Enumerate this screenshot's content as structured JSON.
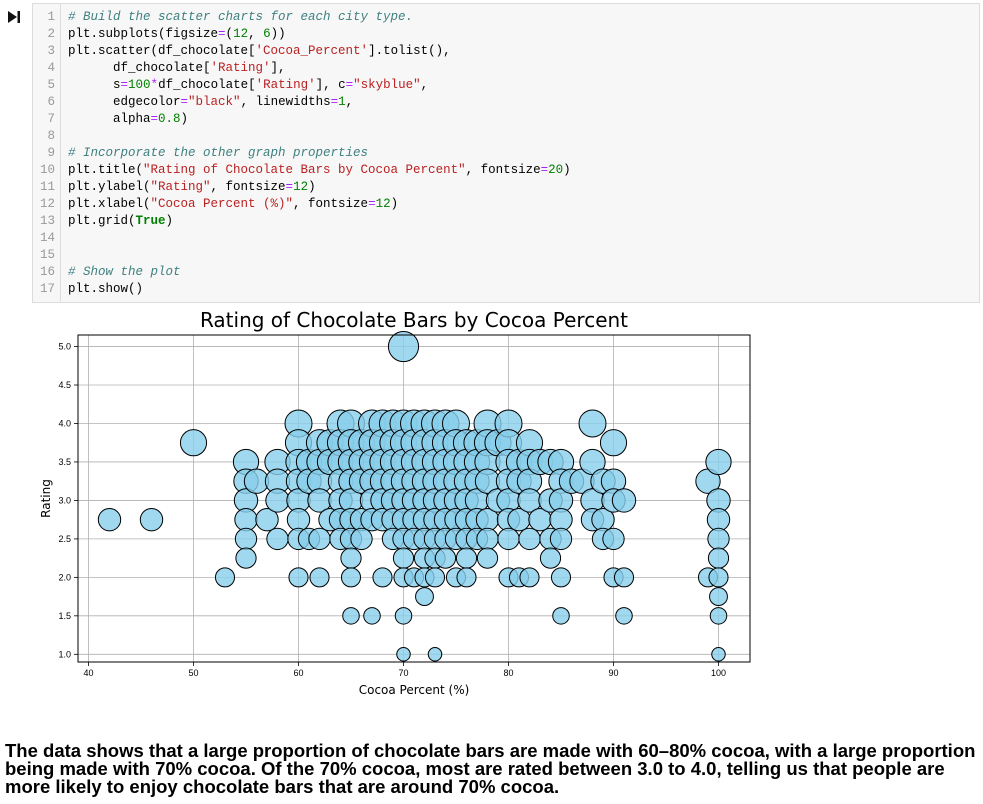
{
  "notebook": {
    "code_lines": [
      "# Build the scatter charts for each city type.",
      "plt.subplots(figsize=(12, 6))",
      "plt.scatter(df_chocolate['Cocoa_Percent'].tolist(),",
      "      df_chocolate['Rating'],",
      "      s=100*df_chocolate['Rating'], c=\"skyblue\",",
      "      edgecolor=\"black\", linewidths=1,",
      "      alpha=0.8)",
      "",
      "# Incorporate the other graph properties",
      "plt.title(\"Rating of Chocolate Bars by Cocoa Percent\", fontsize=20)",
      "plt.ylabel(\"Rating\", fontsize=12)",
      "plt.xlabel(\"Cocoa Percent (%)\", fontsize=12)",
      "plt.grid(True)",
      "",
      "",
      "# Show the plot",
      "plt.show()"
    ]
  },
  "chart_data": {
    "type": "scatter",
    "title": "Rating of Chocolate Bars by Cocoa Percent",
    "xlabel": "Cocoa Percent (%)",
    "ylabel": "Rating",
    "xlim": [
      39,
      103
    ],
    "ylim": [
      0.9,
      5.15
    ],
    "xticks": [
      40,
      50,
      60,
      70,
      80,
      90,
      100
    ],
    "yticks": [
      1.0,
      1.5,
      2.0,
      2.5,
      3.0,
      3.5,
      4.0,
      4.5,
      5.0
    ],
    "grid": true,
    "marker_color": "#87ceeb",
    "edge_color": "#000000",
    "size_rule": "marker area proportional to 100 x rating",
    "points": [
      [
        42,
        2.75
      ],
      [
        46,
        2.75
      ],
      [
        50,
        3.75
      ],
      [
        53,
        2.0
      ],
      [
        55,
        3.5
      ],
      [
        55,
        3.25
      ],
      [
        55,
        3.0
      ],
      [
        55,
        2.75
      ],
      [
        55,
        2.5
      ],
      [
        55,
        2.25
      ],
      [
        56,
        3.25
      ],
      [
        57,
        2.75
      ],
      [
        58,
        3.5
      ],
      [
        58,
        3.25
      ],
      [
        58,
        3.0
      ],
      [
        58,
        2.5
      ],
      [
        60,
        4.0
      ],
      [
        60,
        3.75
      ],
      [
        60,
        3.5
      ],
      [
        60,
        3.25
      ],
      [
        60,
        3.0
      ],
      [
        60,
        2.75
      ],
      [
        60,
        2.5
      ],
      [
        60,
        2.0
      ],
      [
        61,
        3.5
      ],
      [
        61,
        3.25
      ],
      [
        61,
        2.5
      ],
      [
        62,
        3.75
      ],
      [
        62,
        3.5
      ],
      [
        62,
        3.25
      ],
      [
        62,
        3.0
      ],
      [
        62,
        2.5
      ],
      [
        62,
        2.0
      ],
      [
        63,
        3.75
      ],
      [
        63,
        3.5
      ],
      [
        63,
        2.75
      ],
      [
        64,
        4.0
      ],
      [
        64,
        3.75
      ],
      [
        64,
        3.5
      ],
      [
        64,
        3.25
      ],
      [
        64,
        3.0
      ],
      [
        64,
        2.75
      ],
      [
        64,
        2.5
      ],
      [
        65,
        4.0
      ],
      [
        65,
        3.75
      ],
      [
        65,
        3.5
      ],
      [
        65,
        3.25
      ],
      [
        65,
        3.0
      ],
      [
        65,
        2.75
      ],
      [
        65,
        2.5
      ],
      [
        65,
        2.25
      ],
      [
        65,
        2.0
      ],
      [
        65,
        1.5
      ],
      [
        66,
        3.75
      ],
      [
        66,
        3.5
      ],
      [
        66,
        3.25
      ],
      [
        66,
        2.75
      ],
      [
        66,
        2.5
      ],
      [
        67,
        4.0
      ],
      [
        67,
        3.75
      ],
      [
        67,
        3.5
      ],
      [
        67,
        3.25
      ],
      [
        67,
        3.0
      ],
      [
        67,
        2.75
      ],
      [
        67,
        1.5
      ],
      [
        68,
        4.0
      ],
      [
        68,
        3.75
      ],
      [
        68,
        3.5
      ],
      [
        68,
        3.25
      ],
      [
        68,
        3.0
      ],
      [
        68,
        2.75
      ],
      [
        68,
        2.0
      ],
      [
        69,
        4.0
      ],
      [
        69,
        3.75
      ],
      [
        69,
        3.5
      ],
      [
        69,
        3.25
      ],
      [
        69,
        3.0
      ],
      [
        69,
        2.75
      ],
      [
        69,
        2.5
      ],
      [
        70,
        5.0
      ],
      [
        70,
        4.0
      ],
      [
        70,
        3.75
      ],
      [
        70,
        3.5
      ],
      [
        70,
        3.25
      ],
      [
        70,
        3.0
      ],
      [
        70,
        2.75
      ],
      [
        70,
        2.5
      ],
      [
        70,
        2.25
      ],
      [
        70,
        2.0
      ],
      [
        70,
        1.5
      ],
      [
        70,
        1.0
      ],
      [
        71,
        4.0
      ],
      [
        71,
        3.75
      ],
      [
        71,
        3.5
      ],
      [
        71,
        3.25
      ],
      [
        71,
        3.0
      ],
      [
        71,
        2.75
      ],
      [
        71,
        2.5
      ],
      [
        71,
        2.0
      ],
      [
        72,
        4.0
      ],
      [
        72,
        3.75
      ],
      [
        72,
        3.5
      ],
      [
        72,
        3.25
      ],
      [
        72,
        3.0
      ],
      [
        72,
        2.75
      ],
      [
        72,
        2.5
      ],
      [
        72,
        2.25
      ],
      [
        72,
        2.0
      ],
      [
        72,
        1.75
      ],
      [
        73,
        4.0
      ],
      [
        73,
        3.75
      ],
      [
        73,
        3.5
      ],
      [
        73,
        3.25
      ],
      [
        73,
        3.0
      ],
      [
        73,
        2.75
      ],
      [
        73,
        2.5
      ],
      [
        73,
        2.25
      ],
      [
        73,
        2.0
      ],
      [
        73,
        1.0
      ],
      [
        74,
        4.0
      ],
      [
        74,
        3.75
      ],
      [
        74,
        3.5
      ],
      [
        74,
        3.25
      ],
      [
        74,
        3.0
      ],
      [
        74,
        2.75
      ],
      [
        74,
        2.5
      ],
      [
        74,
        2.25
      ],
      [
        75,
        4.0
      ],
      [
        75,
        3.75
      ],
      [
        75,
        3.5
      ],
      [
        75,
        3.25
      ],
      [
        75,
        3.0
      ],
      [
        75,
        2.75
      ],
      [
        75,
        2.5
      ],
      [
        75,
        2.0
      ],
      [
        76,
        3.75
      ],
      [
        76,
        3.5
      ],
      [
        76,
        3.25
      ],
      [
        76,
        3.0
      ],
      [
        76,
        2.75
      ],
      [
        76,
        2.5
      ],
      [
        76,
        2.25
      ],
      [
        76,
        2.0
      ],
      [
        77,
        3.75
      ],
      [
        77,
        3.5
      ],
      [
        77,
        3.25
      ],
      [
        77,
        3.0
      ],
      [
        77,
        2.75
      ],
      [
        77,
        2.5
      ],
      [
        78,
        4.0
      ],
      [
        78,
        3.75
      ],
      [
        78,
        3.5
      ],
      [
        78,
        3.25
      ],
      [
        78,
        2.75
      ],
      [
        78,
        2.5
      ],
      [
        78,
        2.25
      ],
      [
        79,
        3.75
      ],
      [
        79,
        3.0
      ],
      [
        80,
        4.0
      ],
      [
        80,
        3.75
      ],
      [
        80,
        3.5
      ],
      [
        80,
        3.25
      ],
      [
        80,
        3.0
      ],
      [
        80,
        2.75
      ],
      [
        80,
        2.5
      ],
      [
        80,
        2.0
      ],
      [
        81,
        3.5
      ],
      [
        81,
        3.25
      ],
      [
        81,
        2.75
      ],
      [
        81,
        2.0
      ],
      [
        82,
        3.75
      ],
      [
        82,
        3.5
      ],
      [
        82,
        3.25
      ],
      [
        82,
        3.0
      ],
      [
        82,
        2.5
      ],
      [
        82,
        2.0
      ],
      [
        83,
        3.5
      ],
      [
        83,
        2.75
      ],
      [
        84,
        3.5
      ],
      [
        84,
        3.0
      ],
      [
        84,
        2.5
      ],
      [
        84,
        2.25
      ],
      [
        85,
        3.5
      ],
      [
        85,
        3.25
      ],
      [
        85,
        3.0
      ],
      [
        85,
        2.75
      ],
      [
        85,
        2.5
      ],
      [
        85,
        2.0
      ],
      [
        85,
        1.5
      ],
      [
        86,
        3.25
      ],
      [
        87,
        3.25
      ],
      [
        88,
        4.0
      ],
      [
        88,
        3.5
      ],
      [
        88,
        3.0
      ],
      [
        88,
        2.75
      ],
      [
        89,
        3.25
      ],
      [
        89,
        2.75
      ],
      [
        89,
        2.5
      ],
      [
        90,
        3.75
      ],
      [
        90,
        3.25
      ],
      [
        90,
        3.0
      ],
      [
        90,
        2.5
      ],
      [
        90,
        2.0
      ],
      [
        91,
        3.0
      ],
      [
        91,
        2.0
      ],
      [
        91,
        1.5
      ],
      [
        99,
        3.25
      ],
      [
        99,
        2.0
      ],
      [
        100,
        3.5
      ],
      [
        100,
        3.0
      ],
      [
        100,
        2.75
      ],
      [
        100,
        2.5
      ],
      [
        100,
        2.25
      ],
      [
        100,
        2.0
      ],
      [
        100,
        1.75
      ],
      [
        100,
        1.5
      ],
      [
        100,
        1.0
      ]
    ]
  },
  "conclusion": "The data shows that a large proportion of chocolate bars are made with 60–80% cocoa, with a large proportion being made with 70% cocoa. Of the 70% cocoa, most are rated between 3.0 to 4.0, telling us that people are more likely to enjoy chocolate bars that are around 70% cocoa."
}
